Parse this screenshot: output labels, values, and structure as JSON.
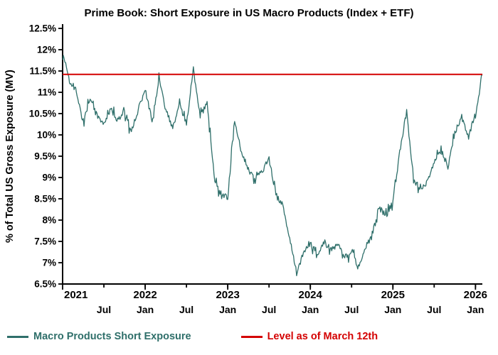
{
  "chart_data": {
    "type": "line",
    "title": "Prime Book: Short Exposure in US Macro Products (Index + ETF)",
    "ylabel": "% of Total US Gross Exposure (MV)",
    "xlabel": "",
    "ylim": [
      6.5,
      12.5
    ],
    "ytick_step": 0.5,
    "ytick_labels": [
      "6.5%",
      "7%",
      "7.5%",
      "8%",
      "8.5%",
      "9%",
      "9.5%",
      "10%",
      "10.5%",
      "11%",
      "11.5%",
      "12%",
      "12.5%"
    ],
    "x_domain_months": [
      "2021-01",
      "2026-02"
    ],
    "grid": false,
    "xtick_years": [
      {
        "m": 0,
        "label": "2021",
        "align": "start"
      },
      {
        "m": 12,
        "label": "2022"
      },
      {
        "m": 24,
        "label": "2023"
      },
      {
        "m": 36,
        "label": "2024"
      },
      {
        "m": 48,
        "label": "2025"
      },
      {
        "m": 60,
        "label": "2026"
      }
    ],
    "xtick_months": [
      {
        "m": 6,
        "label": "Jul"
      },
      {
        "m": 12,
        "label": "Jan"
      },
      {
        "m": 18,
        "label": "Jul"
      },
      {
        "m": 24,
        "label": "Jan"
      },
      {
        "m": 30,
        "label": "Jul"
      },
      {
        "m": 36,
        "label": "Jan"
      },
      {
        "m": 42,
        "label": "Jul"
      },
      {
        "m": 48,
        "label": "Jan"
      },
      {
        "m": 54,
        "label": "Jul"
      },
      {
        "m": 60,
        "label": "Jan"
      }
    ],
    "reference_line": {
      "label": "Level as of March 12th",
      "value": 11.42,
      "color": "#d40000"
    },
    "series": [
      {
        "name": "Macro Products Short Exposure",
        "color": "#2f6f6a",
        "points": [
          [
            "2021-01",
            11.85
          ],
          [
            "2021-02",
            11.3
          ],
          [
            "2021-03",
            11.05
          ],
          [
            "2021-04",
            10.25
          ],
          [
            "2021-05",
            10.9
          ],
          [
            "2021-06",
            10.45
          ],
          [
            "2021-07",
            10.3
          ],
          [
            "2021-08",
            10.6
          ],
          [
            "2021-09",
            10.35
          ],
          [
            "2021-10",
            10.55
          ],
          [
            "2021-11",
            10.1
          ],
          [
            "2021-12",
            10.6
          ],
          [
            "2022-01",
            11.05
          ],
          [
            "2022-02",
            10.35
          ],
          [
            "2022-03",
            11.3
          ],
          [
            "2022-04",
            10.6
          ],
          [
            "2022-05",
            10.15
          ],
          [
            "2022-06",
            10.8
          ],
          [
            "2022-07",
            10.25
          ],
          [
            "2022-08",
            11.55
          ],
          [
            "2022-09",
            10.4
          ],
          [
            "2022-10",
            10.75
          ],
          [
            "2022-11",
            9.1
          ],
          [
            "2022-12",
            8.55
          ],
          [
            "2023-01",
            8.55
          ],
          [
            "2023-02",
            10.35
          ],
          [
            "2023-03",
            9.6
          ],
          [
            "2023-04",
            9.2
          ],
          [
            "2023-05",
            8.95
          ],
          [
            "2023-06",
            9.15
          ],
          [
            "2023-07",
            9.45
          ],
          [
            "2023-08",
            8.6
          ],
          [
            "2023-09",
            8.3
          ],
          [
            "2023-10",
            7.6
          ],
          [
            "2023-11",
            6.75
          ],
          [
            "2023-12",
            7.25
          ],
          [
            "2024-01",
            7.45
          ],
          [
            "2024-02",
            7.2
          ],
          [
            "2024-03",
            7.5
          ],
          [
            "2024-04",
            7.3
          ],
          [
            "2024-05",
            7.45
          ],
          [
            "2024-06",
            7.1
          ],
          [
            "2024-07",
            7.3
          ],
          [
            "2024-08",
            6.85
          ],
          [
            "2024-09",
            7.35
          ],
          [
            "2024-10",
            7.65
          ],
          [
            "2024-11",
            8.3
          ],
          [
            "2024-12",
            8.1
          ],
          [
            "2025-01",
            8.45
          ],
          [
            "2025-02",
            9.6
          ],
          [
            "2025-03",
            10.55
          ],
          [
            "2025-04",
            9.0
          ],
          [
            "2025-05",
            8.7
          ],
          [
            "2025-06",
            8.9
          ],
          [
            "2025-07",
            9.35
          ],
          [
            "2025-08",
            9.65
          ],
          [
            "2025-09",
            9.25
          ],
          [
            "2025-10",
            10.05
          ],
          [
            "2025-11",
            10.45
          ],
          [
            "2025-12",
            9.95
          ],
          [
            "2026-01",
            10.55
          ],
          [
            "2026-02",
            11.4
          ]
        ]
      }
    ],
    "legend": {
      "position": "bottom",
      "entries": [
        {
          "label": "Macro Products Short Exposure",
          "color": "#2f6f6a"
        },
        {
          "label": "Level as of March 12th",
          "color": "#d40000"
        }
      ]
    }
  }
}
